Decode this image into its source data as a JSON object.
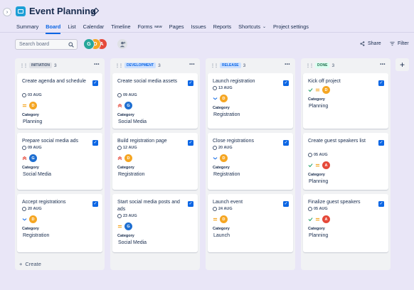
{
  "header": {
    "title": "Event Planning",
    "sidebar_toggle_glyph": "›"
  },
  "tabs": [
    {
      "label": "Summary",
      "active": false
    },
    {
      "label": "Board",
      "active": true
    },
    {
      "label": "List",
      "active": false
    },
    {
      "label": "Calendar",
      "active": false
    },
    {
      "label": "Timeline",
      "active": false
    },
    {
      "label": "Forms",
      "badge": "NEW",
      "active": false
    },
    {
      "label": "Pages",
      "active": false
    },
    {
      "label": "Issues",
      "active": false
    },
    {
      "label": "Reports",
      "active": false
    },
    {
      "label": "Shortcuts",
      "chevron": "⌄",
      "active": false
    },
    {
      "label": "Project settings",
      "active": false
    }
  ],
  "toolbar": {
    "search_placeholder": "Search board",
    "share_label": "Share",
    "filter_label": "Filter",
    "avatars": [
      {
        "letter": "G",
        "color": "#26a69a"
      },
      {
        "letter": "D",
        "color": "#f5a623"
      },
      {
        "letter": "A",
        "color": "#e5493a"
      }
    ]
  },
  "columns": [
    {
      "name": "INITIATION",
      "count": "3",
      "lozenge_bg": "#dfe1e6",
      "lozenge_fg": "#44546f",
      "create_label": "Create",
      "cards": [
        {
          "title": "Create agenda and schedule",
          "date": "03 AUG",
          "priority": "medium",
          "assignee": "D",
          "assignee_color": "#f5a623",
          "category_label": "Category",
          "category": "Planning"
        },
        {
          "title": "Prepare social media ads",
          "date": "09 AUG",
          "priority": "high",
          "assignee": "G",
          "assignee_color": "#1f6fd1",
          "category_label": "Category",
          "category": "Social Media"
        },
        {
          "title": "Accept registrations",
          "date": "20 AUG",
          "priority": "low",
          "assignee": "D",
          "assignee_color": "#f5a623",
          "category_label": "Category",
          "category": "Registration"
        }
      ]
    },
    {
      "name": "DEVELOPMENT",
      "count": "3",
      "lozenge_bg": "#cce0ff",
      "lozenge_fg": "#0c66e4",
      "cards": [
        {
          "title": "Create social media assets",
          "date": "09 AUG",
          "priority": "high",
          "assignee": "G",
          "assignee_color": "#1f6fd1",
          "category_label": "Category",
          "category": "Social Media"
        },
        {
          "title": "Build registration page",
          "date": "12 AUG",
          "priority": "high",
          "assignee": "D",
          "assignee_color": "#f5a623",
          "category_label": "Category",
          "category": "Registration"
        },
        {
          "title": "Start social media posts and ads",
          "date": "23 AUG",
          "priority": "medium",
          "assignee": "G",
          "assignee_color": "#1f6fd1",
          "category_label": "Category",
          "category": "Social Media"
        }
      ]
    },
    {
      "name": "RELEASE",
      "count": "3",
      "lozenge_bg": "#cce0ff",
      "lozenge_fg": "#0c66e4",
      "cards": [
        {
          "title": "Launch registration",
          "date": "13 AUG",
          "priority": "low",
          "assignee": "D",
          "assignee_color": "#f5a623",
          "category_label": "Category",
          "category": "Registration"
        },
        {
          "title": "Close registrations",
          "date": "20 AUG",
          "priority": "low",
          "assignee": "D",
          "assignee_color": "#f5a623",
          "category_label": "Category",
          "category": "Registration"
        },
        {
          "title": "Launch event",
          "date": "24 AUG",
          "priority": "medium",
          "assignee": "D",
          "assignee_color": "#f5a623",
          "category_label": "Category",
          "category": "Launch"
        }
      ]
    },
    {
      "name": "DONE",
      "count": "3",
      "lozenge_bg": "#dcfff1",
      "lozenge_fg": "#216e4e",
      "cards": [
        {
          "title": "Kick off project",
          "date": "",
          "priority": "medium",
          "assignee": "D",
          "assignee_color": "#f5a623",
          "done": true,
          "category_label": "Category",
          "category": "Planning"
        },
        {
          "title": "Create guest speakers list",
          "date": "05 AUG",
          "priority": "medium",
          "assignee": "A",
          "assignee_color": "#e5493a",
          "done": true,
          "category_label": "Category",
          "category": "Planning"
        },
        {
          "title": "Finalize guest speakers",
          "date": "05 AUG",
          "priority": "medium",
          "assignee": "A",
          "assignee_color": "#e5493a",
          "done": true,
          "category_label": "Category",
          "category": "Planning"
        }
      ]
    }
  ],
  "add_column_glyph": "+"
}
